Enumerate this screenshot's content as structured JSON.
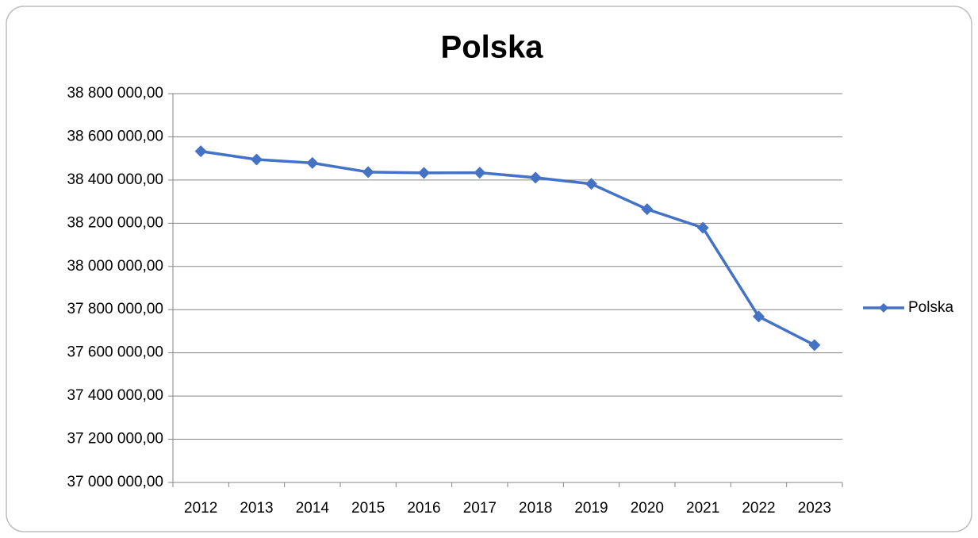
{
  "chart_data": {
    "type": "line",
    "title": "Polska",
    "categories": [
      "2012",
      "2013",
      "2014",
      "2015",
      "2016",
      "2017",
      "2018",
      "2019",
      "2020",
      "2021",
      "2022",
      "2023"
    ],
    "series": [
      {
        "name": "Polska",
        "color": "#4472c4",
        "values": [
          38533000,
          38495000,
          38479000,
          38437000,
          38433000,
          38434000,
          38411000,
          38382000,
          38265000,
          38179000,
          37768000,
          37636000
        ]
      }
    ],
    "ylim": [
      37000000,
      38800000
    ],
    "yticks": [
      {
        "value": 37000000,
        "label": "37 000 000,00"
      },
      {
        "value": 37200000,
        "label": "37 200 000,00"
      },
      {
        "value": 37400000,
        "label": "37 400 000,00"
      },
      {
        "value": 37600000,
        "label": "37 600 000,00"
      },
      {
        "value": 37800000,
        "label": "37 800 000,00"
      },
      {
        "value": 38000000,
        "label": "38 000 000,00"
      },
      {
        "value": 38200000,
        "label": "38 200 000,00"
      },
      {
        "value": 38400000,
        "label": "38 400 000,00"
      },
      {
        "value": 38600000,
        "label": "38 600 000,00"
      },
      {
        "value": 38800000,
        "label": "38 800 000,00"
      }
    ],
    "grid": true,
    "legend": "right"
  }
}
